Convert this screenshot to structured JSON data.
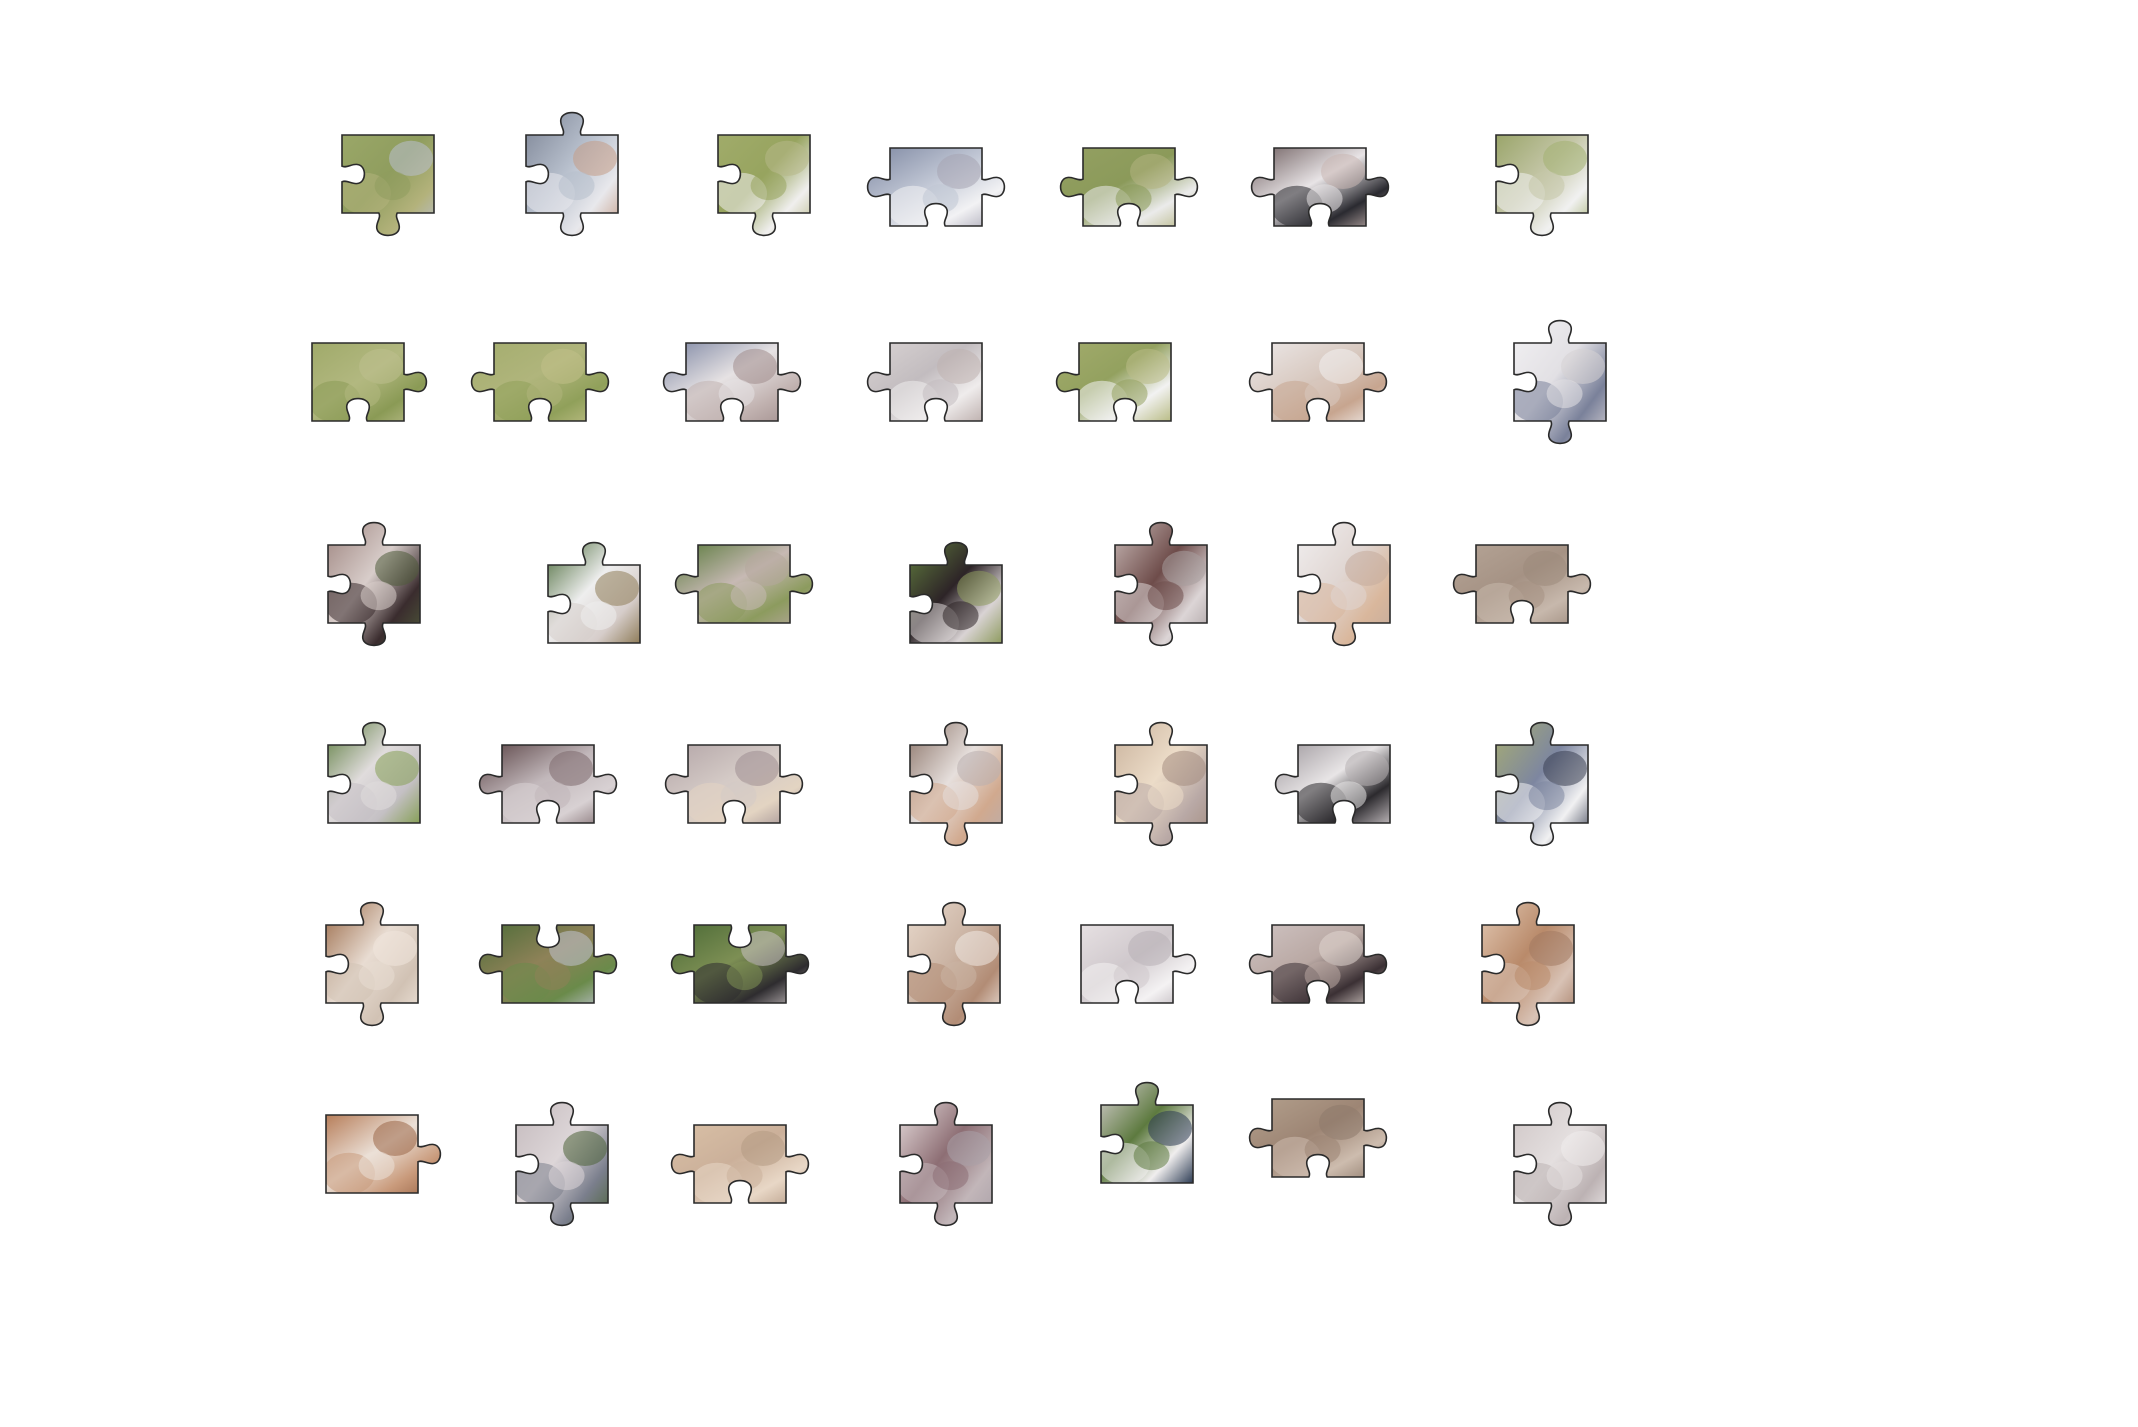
{
  "puzzle": {
    "rows": 6,
    "cols": 7,
    "pieces": [
      {
        "id": "r1c1",
        "palette": [
          "#9aa768",
          "#8f9d5e",
          "#b3b27b",
          "#b9bfd0"
        ],
        "tabs": [
          0,
          0,
          1,
          -1
        ]
      },
      {
        "id": "r1c2",
        "palette": [
          "#7c8495",
          "#b7bfcc",
          "#e8e8ec",
          "#c49c86"
        ],
        "tabs": [
          1,
          0,
          1,
          -1
        ]
      },
      {
        "id": "r1c3",
        "palette": [
          "#a0ab6a",
          "#97a45f",
          "#f0efee",
          "#b7b889"
        ],
        "tabs": [
          0,
          0,
          1,
          -1
        ]
      },
      {
        "id": "r1c4",
        "palette": [
          "#7e88a2",
          "#c0c6d4",
          "#f2f2f4",
          "#a6a4b3"
        ],
        "tabs": [
          0,
          1,
          -1,
          1
        ]
      },
      {
        "id": "r1c5",
        "palette": [
          "#94a062",
          "#8b9a5a",
          "#ebebeb",
          "#b3b37f"
        ],
        "tabs": [
          0,
          1,
          -1,
          1
        ]
      },
      {
        "id": "r1c6",
        "palette": [
          "#6d5d5e",
          "#e8e4e6",
          "#2a2a30",
          "#c9b6b2"
        ],
        "tabs": [
          0,
          1,
          -1,
          1
        ]
      },
      {
        "id": "r1c7",
        "palette": [
          "#9aa56a",
          "#c4c6a7",
          "#f1f1f1",
          "#a3b071"
        ],
        "tabs": [
          0,
          0,
          1,
          -1
        ]
      },
      {
        "id": "r2c1",
        "palette": [
          "#a0aa6a",
          "#b2b880",
          "#8a9a55",
          "#bdbf8e"
        ],
        "tabs": [
          0,
          1,
          -1,
          0
        ]
      },
      {
        "id": "r2c2",
        "palette": [
          "#a4ad6e",
          "#b0b57c",
          "#90a05a",
          "#c1c089"
        ],
        "tabs": [
          0,
          1,
          -1,
          1
        ]
      },
      {
        "id": "r2c3",
        "palette": [
          "#7d86a3",
          "#e6e2e3",
          "#c1b2b0",
          "#a08d8c"
        ],
        "tabs": [
          0,
          1,
          -1,
          1
        ]
      },
      {
        "id": "r2c4",
        "palette": [
          "#d9d3d3",
          "#c2bcbf",
          "#efecec",
          "#bfb2b0"
        ],
        "tabs": [
          0,
          0,
          -1,
          1
        ]
      },
      {
        "id": "r2c5",
        "palette": [
          "#a2ab6c",
          "#93a15f",
          "#f2f2f2",
          "#b9bc86"
        ],
        "tabs": [
          0,
          0,
          -1,
          1
        ]
      },
      {
        "id": "r2c6",
        "palette": [
          "#ece8e8",
          "#d8c9c0",
          "#c7a58f",
          "#f3f1f0"
        ],
        "tabs": [
          0,
          1,
          -1,
          1
        ]
      },
      {
        "id": "r2c7",
        "palette": [
          "#f2f1f3",
          "#e2e0e4",
          "#7a819a",
          "#d6d1d4"
        ],
        "tabs": [
          1,
          0,
          1,
          -1
        ]
      },
      {
        "id": "r3c1",
        "palette": [
          "#9e8580",
          "#d8cdca",
          "#3a2c2e",
          "#4f5b3a"
        ],
        "tabs": [
          1,
          0,
          1,
          -1
        ]
      },
      {
        "id": "r3c2",
        "palette": [
          "#4b6b3a",
          "#eeeeee",
          "#d6cdca",
          "#8f7d5a"
        ],
        "tabs": [
          1,
          0,
          0,
          -1
        ]
      },
      {
        "id": "r3c3",
        "palette": [
          "#5a7a3c",
          "#c7b9b4",
          "#8c9b5e",
          "#b5a79d"
        ],
        "tabs": [
          0,
          1,
          0,
          1
        ]
      },
      {
        "id": "r3c4",
        "palette": [
          "#607c3e",
          "#2d2427",
          "#d9d3d4",
          "#8e9b5f"
        ],
        "tabs": [
          1,
          0,
          0,
          -1
        ]
      },
      {
        "id": "r3c5",
        "palette": [
          "#c8b9b6",
          "#6e4c4a",
          "#dcd5d6",
          "#a89e9f"
        ],
        "tabs": [
          1,
          0,
          1,
          -1
        ]
      },
      {
        "id": "r3c6",
        "palette": [
          "#f1eff0",
          "#e0d6d2",
          "#d9b79c",
          "#c4ab9d"
        ],
        "tabs": [
          1,
          0,
          1,
          -1
        ]
      },
      {
        "id": "r3c7",
        "palette": [
          "#b5a496",
          "#a59284",
          "#c7b8ac",
          "#9d8a7c"
        ],
        "tabs": [
          0,
          1,
          -1,
          1
        ]
      },
      {
        "id": "r4c1",
        "palette": [
          "#5c7c3e",
          "#e0dcdc",
          "#c4c0c4",
          "#87a058"
        ],
        "tabs": [
          1,
          0,
          0,
          -1
        ]
      },
      {
        "id": "r4c2",
        "palette": [
          "#5a4345",
          "#c1b7ba",
          "#d8d1d3",
          "#7d6a6d"
        ],
        "tabs": [
          0,
          1,
          -1,
          1
        ]
      },
      {
        "id": "r4c3",
        "palette": [
          "#b3a5a7",
          "#d4cac6",
          "#e3d4c2",
          "#9e8e91"
        ],
        "tabs": [
          0,
          1,
          -1,
          1
        ]
      },
      {
        "id": "r4c4",
        "palette": [
          "#8a7368",
          "#e6dfdc",
          "#d1a98e",
          "#b9aeae"
        ],
        "tabs": [
          1,
          0,
          1,
          -1
        ]
      },
      {
        "id": "r4c5",
        "palette": [
          "#c9b29c",
          "#ecdcc8",
          "#b9a9a6",
          "#a48d80"
        ],
        "tabs": [
          1,
          0,
          1,
          -1
        ]
      },
      {
        "id": "r4c6",
        "palette": [
          "#9c969b",
          "#e8e5e6",
          "#2c2a2e",
          "#b6b0b3"
        ],
        "tabs": [
          0,
          0,
          -1,
          1
        ]
      },
      {
        "id": "r4c7",
        "palette": [
          "#a7ad72",
          "#7d86a0",
          "#f1f1f2",
          "#3a3f52"
        ],
        "tabs": [
          1,
          0,
          1,
          -1
        ]
      },
      {
        "id": "r5c1",
        "palette": [
          "#9a6a48",
          "#e8dcd2",
          "#d1c2b4",
          "#f0e6dc"
        ],
        "tabs": [
          1,
          0,
          1,
          -1
        ]
      },
      {
        "id": "r5c2",
        "palette": [
          "#4d6c38",
          "#8e8258",
          "#6a8a4a",
          "#bfc3d0"
        ],
        "tabs": [
          -1,
          1,
          0,
          1
        ]
      },
      {
        "id": "r5c3",
        "palette": [
          "#4b6a36",
          "#7d8f54",
          "#2e2c2f",
          "#c9c1c2"
        ],
        "tabs": [
          -1,
          1,
          0,
          1
        ]
      },
      {
        "id": "r5c4",
        "palette": [
          "#e8d9cc",
          "#cbb4a4",
          "#b28c75",
          "#f0e9e3"
        ],
        "tabs": [
          1,
          0,
          1,
          -1
        ]
      },
      {
        "id": "r5c5",
        "palette": [
          "#e6e0e2",
          "#cfc8cc",
          "#f4f2f3",
          "#b8b0b6"
        ],
        "tabs": [
          0,
          1,
          -1,
          0
        ]
      },
      {
        "id": "r5c6",
        "palette": [
          "#cfc3c2",
          "#b9a8a3",
          "#3b3034",
          "#e0d6d0"
        ],
        "tabs": [
          0,
          1,
          -1,
          1
        ]
      },
      {
        "id": "r5c7",
        "palette": [
          "#e2c8b3",
          "#b98a6a",
          "#d8c2b5",
          "#a37a62"
        ],
        "tabs": [
          1,
          0,
          1,
          -1
        ]
      },
      {
        "id": "r6c1",
        "palette": [
          "#b77e5a",
          "#ebe0d7",
          "#c99a7b",
          "#9a6647"
        ],
        "tabs": [
          0,
          1,
          0,
          0
        ]
      },
      {
        "id": "r6c2",
        "palette": [
          "#c4babd",
          "#ddd6d8",
          "#7b7f8d",
          "#4c6338"
        ],
        "tabs": [
          1,
          0,
          1,
          -1
        ]
      },
      {
        "id": "r6c3",
        "palette": [
          "#d9c0a6",
          "#cbb09a",
          "#e8d7c6",
          "#b59a84"
        ],
        "tabs": [
          0,
          1,
          -1,
          1
        ]
      },
      {
        "id": "r6c4",
        "palette": [
          "#e6dcdc",
          "#8d6e74",
          "#c2b6b9",
          "#a9a0a7"
        ],
        "tabs": [
          1,
          0,
          1,
          -1
        ]
      },
      {
        "id": "r6c5",
        "palette": [
          "#d8d0d3",
          "#5d7a3f",
          "#f0eeee",
          "#2d3c54"
        ],
        "tabs": [
          1,
          0,
          0,
          -1
        ]
      },
      {
        "id": "r6c6",
        "palette": [
          "#b3a08d",
          "#9d8574",
          "#cdbcae",
          "#8e7a6b"
        ],
        "tabs": [
          0,
          1,
          -1,
          1
        ]
      },
      {
        "id": "r6c7",
        "palette": [
          "#cfc6c6",
          "#e4dfdf",
          "#bcb2b3",
          "#f0eded"
        ],
        "tabs": [
          1,
          0,
          1,
          -1
        ]
      }
    ]
  }
}
